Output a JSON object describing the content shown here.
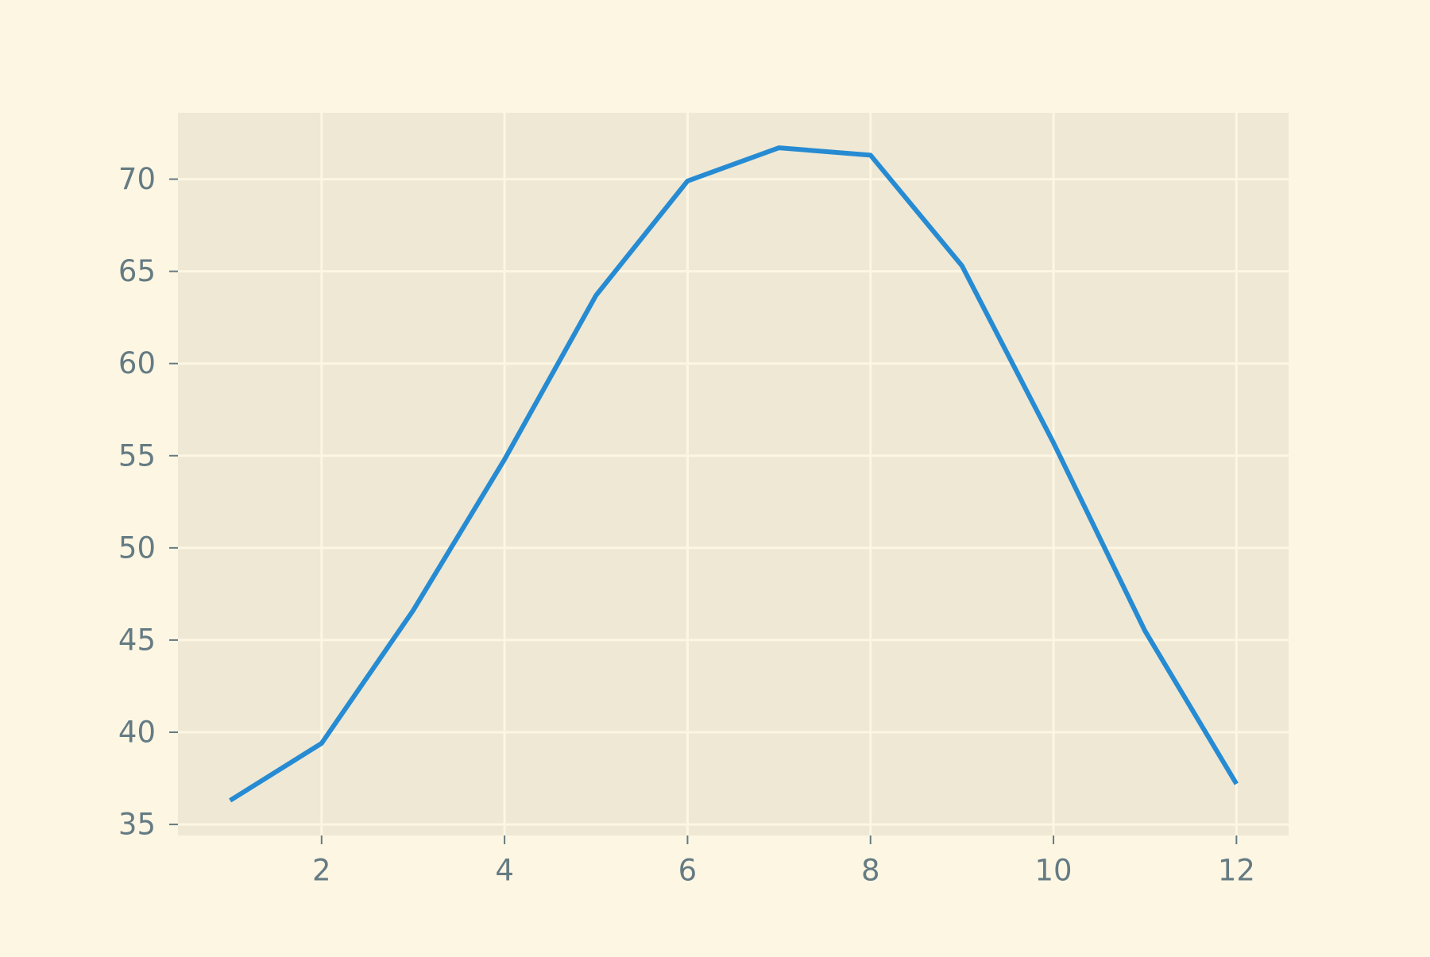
{
  "colors": {
    "page_background": "#fdf6e3",
    "plot_background": "#eee8d5",
    "grid": "#fdf6e3",
    "tick_text": "#657b83",
    "line": "#268bd2"
  },
  "chart_data": {
    "type": "line",
    "title": "",
    "xlabel": "",
    "ylabel": "",
    "grid": true,
    "legend": "none",
    "xlim": [
      0.43,
      12.57
    ],
    "ylim": [
      34.4,
      73.6
    ],
    "x_ticks": [
      2,
      4,
      6,
      8,
      10,
      12
    ],
    "y_ticks": [
      35,
      40,
      45,
      50,
      55,
      60,
      65,
      70
    ],
    "x_tick_labels": [
      "2",
      "4",
      "6",
      "8",
      "10",
      "12"
    ],
    "y_tick_labels": [
      "35",
      "40",
      "45",
      "50",
      "55",
      "60",
      "65",
      "70"
    ],
    "series": [
      {
        "x": [
          1,
          2,
          3,
          4,
          5,
          6,
          7,
          8,
          9,
          10,
          11,
          12
        ],
        "values": [
          36.3,
          39.4,
          46.6,
          54.8,
          63.7,
          69.9,
          71.7,
          71.3,
          65.3,
          55.7,
          45.5,
          37.2
        ],
        "color": "#268bd2"
      }
    ]
  }
}
